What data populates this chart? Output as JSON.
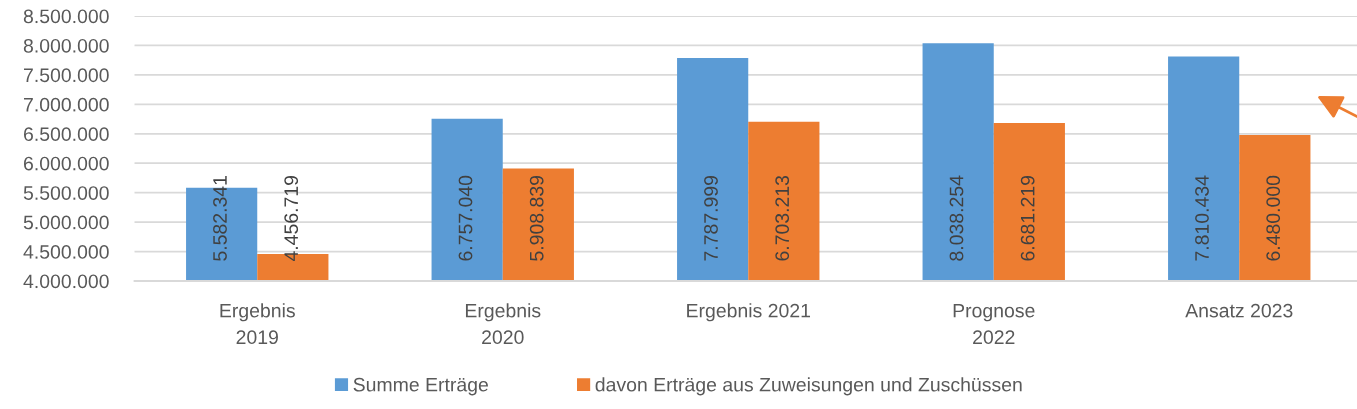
{
  "chart_data": {
    "type": "bar",
    "categories": [
      "Ergebnis\n2019",
      "Ergebnis\n2020",
      "Ergebnis 2021",
      "Prognose\n2022",
      "Ansatz 2023"
    ],
    "series": [
      {
        "name": "Summe Erträge",
        "color": "#5b9bd5",
        "values": [
          5582341,
          6757040,
          7787999,
          8038254,
          7810434
        ],
        "value_labels": [
          "5.582.341",
          "6.757.040",
          "7.787.999",
          "8.038.254",
          "7.810.434"
        ]
      },
      {
        "name": "davon Erträge aus Zuweisungen und Zuschüssen",
        "color": "#ed7d31",
        "values": [
          4456719,
          5908839,
          6703213,
          6681219,
          6480000
        ],
        "value_labels": [
          "4.456.719",
          "5.908.839",
          "6.703.213",
          "6.681.219",
          "6.480.000"
        ]
      }
    ],
    "ylim": [
      4000000,
      8500000
    ],
    "yticks": [
      {
        "value": 4000000,
        "label": "4.000.000"
      },
      {
        "value": 4500000,
        "label": "4.500.000"
      },
      {
        "value": 5000000,
        "label": "5.000.000"
      },
      {
        "value": 5500000,
        "label": "5.500.000"
      },
      {
        "value": 6000000,
        "label": "6.000.000"
      },
      {
        "value": 6500000,
        "label": "6.500.000"
      },
      {
        "value": 7000000,
        "label": "7.000.000"
      },
      {
        "value": 7500000,
        "label": "7.500.000"
      },
      {
        "value": 8000000,
        "label": "8.000.000"
      },
      {
        "value": 8500000,
        "label": "8.500.000"
      }
    ],
    "grid": "y",
    "legend": "bottom"
  }
}
